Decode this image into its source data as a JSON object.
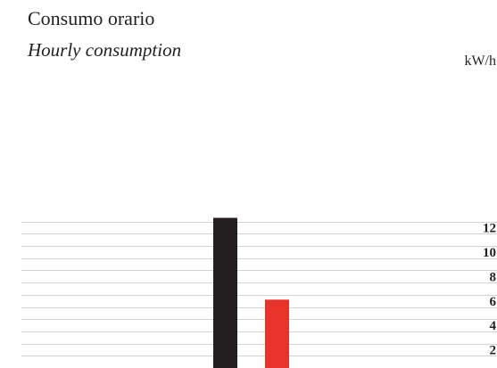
{
  "chart_data": {
    "type": "bar",
    "title": "Consumo orario",
    "subtitle": "Hourly consumption",
    "ylabel": "kW/h",
    "ylim": [
      0,
      12
    ],
    "yticks": [
      2,
      4,
      6,
      8,
      10,
      12
    ],
    "grid": true,
    "axis_side": "right",
    "series": [
      {
        "values": [
          12.3,
          5.6
        ],
        "colors": [
          "#231f20",
          "#e8332a"
        ]
      }
    ]
  }
}
